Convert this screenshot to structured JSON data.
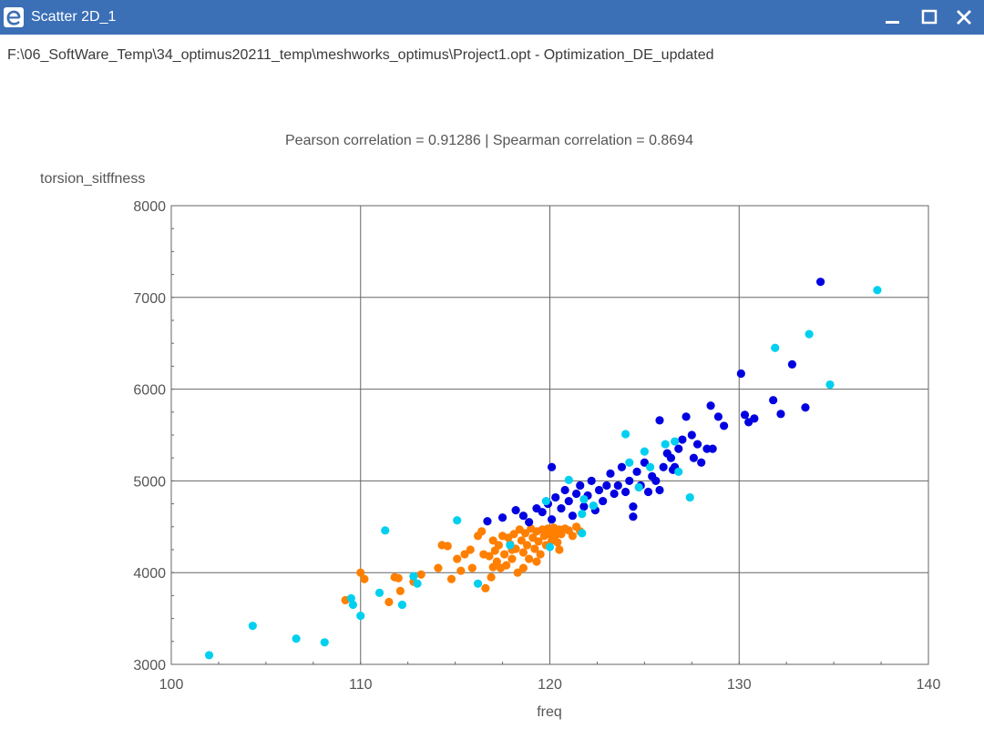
{
  "window": {
    "title": "Scatter 2D_1",
    "path": "F:\\06_SoftWare_Temp\\34_optimus20211_temp\\meshworks_optimus\\Project1.opt - Optimization_DE_updated",
    "title_bar_color": "#3b6fb6",
    "icons": [
      "app-logo-icon",
      "minimize-icon",
      "maximize-icon",
      "close-icon"
    ]
  },
  "chart_data": {
    "type": "scatter",
    "title": "Pearson correlation = 0.91286 | Spearman correlation = 0.8694",
    "xlabel": "freq",
    "ylabel": "torsion_sitffness",
    "xlim": [
      100,
      140
    ],
    "ylim": [
      3000,
      8000
    ],
    "xticks": [
      "100",
      "110",
      "120",
      "130",
      "140"
    ],
    "yticks": [
      "3000",
      "4000",
      "5000",
      "6000",
      "7000",
      "8000"
    ],
    "grid": true,
    "legend": "none",
    "series": [
      {
        "color": "#ff7f00",
        "points": [
          [
            109.2,
            3700
          ],
          [
            110,
            4000
          ],
          [
            110.2,
            3930
          ],
          [
            111.8,
            3950
          ],
          [
            112,
            3940
          ],
          [
            112.1,
            3800
          ],
          [
            111.5,
            3680
          ],
          [
            112.8,
            3900
          ],
          [
            113.2,
            3980
          ],
          [
            114.1,
            4050
          ],
          [
            114.3,
            4300
          ],
          [
            114.6,
            4290
          ],
          [
            114.8,
            3930
          ],
          [
            115.1,
            4150
          ],
          [
            115.3,
            4020
          ],
          [
            115.5,
            4200
          ],
          [
            115.8,
            4250
          ],
          [
            115.9,
            4050
          ],
          [
            116.2,
            4400
          ],
          [
            116.4,
            4450
          ],
          [
            116.6,
            3830
          ],
          [
            116.8,
            4180
          ],
          [
            116.9,
            3950
          ],
          [
            117,
            4350
          ],
          [
            117.1,
            4240
          ],
          [
            117.2,
            4120
          ],
          [
            117.3,
            4300
          ],
          [
            117.4,
            4050
          ],
          [
            117.5,
            4400
          ],
          [
            117.6,
            4200
          ],
          [
            117.7,
            4080
          ],
          [
            117.8,
            4380
          ],
          [
            117.9,
            4310
          ],
          [
            118,
            4150
          ],
          [
            118.1,
            4420
          ],
          [
            118.2,
            4260
          ],
          [
            118.3,
            4000
          ],
          [
            118.4,
            4470
          ],
          [
            118.5,
            4350
          ],
          [
            118.6,
            4220
          ],
          [
            118.7,
            4430
          ],
          [
            118.8,
            4300
          ],
          [
            118.9,
            4150
          ],
          [
            119,
            4480
          ],
          [
            119.1,
            4380
          ],
          [
            119.2,
            4260
          ],
          [
            119.3,
            4450
          ],
          [
            119.4,
            4340
          ],
          [
            119.5,
            4200
          ],
          [
            119.6,
            4470
          ],
          [
            119.7,
            4400
          ],
          [
            119.8,
            4300
          ],
          [
            119.9,
            4480
          ],
          [
            120,
            4420
          ],
          [
            120.1,
            4350
          ],
          [
            120.2,
            4490
          ],
          [
            120.3,
            4410
          ],
          [
            120.4,
            4330
          ],
          [
            120.5,
            4470
          ],
          [
            120.6,
            4420
          ],
          [
            120.8,
            4480
          ],
          [
            121,
            4460
          ],
          [
            121.2,
            4400
          ],
          [
            121.4,
            4500
          ],
          [
            121.6,
            4450
          ],
          [
            116.5,
            4200
          ],
          [
            117,
            4060
          ],
          [
            118,
            4250
          ],
          [
            118.6,
            4050
          ],
          [
            119.3,
            4120
          ],
          [
            120.5,
            4250
          ]
        ]
      },
      {
        "color": "#0000e0",
        "points": [
          [
            116.7,
            4560
          ],
          [
            117.5,
            4600
          ],
          [
            118.2,
            4680
          ],
          [
            118.6,
            4620
          ],
          [
            118.9,
            4550
          ],
          [
            119.3,
            4700
          ],
          [
            119.6,
            4660
          ],
          [
            119.9,
            4750
          ],
          [
            120.1,
            4580
          ],
          [
            120.3,
            4820
          ],
          [
            120.1,
            5150
          ],
          [
            120.6,
            4700
          ],
          [
            120.8,
            4900
          ],
          [
            121,
            4780
          ],
          [
            121.2,
            4620
          ],
          [
            121.4,
            4860
          ],
          [
            121.6,
            4950
          ],
          [
            121.8,
            4720
          ],
          [
            122,
            4840
          ],
          [
            122.2,
            5000
          ],
          [
            122.4,
            4680
          ],
          [
            122.6,
            4900
          ],
          [
            122.8,
            4780
          ],
          [
            123,
            4950
          ],
          [
            123.2,
            5080
          ],
          [
            123.4,
            4860
          ],
          [
            123.6,
            4950
          ],
          [
            123.8,
            5150
          ],
          [
            124,
            4880
          ],
          [
            124.2,
            5000
          ],
          [
            124.4,
            4720
          ],
          [
            124.6,
            5100
          ],
          [
            124.8,
            4950
          ],
          [
            125,
            5200
          ],
          [
            125.2,
            4880
          ],
          [
            125.4,
            5050
          ],
          [
            125.6,
            5000
          ],
          [
            125.8,
            4900
          ],
          [
            126,
            5150
          ],
          [
            126.2,
            5300
          ],
          [
            126.4,
            5250
          ],
          [
            126.6,
            5150
          ],
          [
            126.8,
            5350
          ],
          [
            127,
            5450
          ],
          [
            127.2,
            5700
          ],
          [
            127.5,
            5500
          ],
          [
            127.8,
            5400
          ],
          [
            128,
            5200
          ],
          [
            128.3,
            5350
          ],
          [
            128.5,
            5820
          ],
          [
            128.9,
            5700
          ],
          [
            129.2,
            5600
          ],
          [
            128.6,
            5350
          ],
          [
            130.1,
            6170
          ],
          [
            130.3,
            5720
          ],
          [
            130.5,
            5640
          ],
          [
            130.8,
            5680
          ],
          [
            131.8,
            5880
          ],
          [
            132.2,
            5730
          ],
          [
            132.8,
            6270
          ],
          [
            133.5,
            5800
          ],
          [
            134.3,
            7170
          ],
          [
            124.4,
            4610
          ],
          [
            125.8,
            5660
          ],
          [
            126.5,
            5120
          ],
          [
            127.6,
            5250
          ]
        ]
      },
      {
        "color": "#00d0f0",
        "points": [
          [
            102,
            3100
          ],
          [
            104.3,
            3420
          ],
          [
            106.6,
            3280
          ],
          [
            108.1,
            3240
          ],
          [
            109.5,
            3720
          ],
          [
            109.6,
            3650
          ],
          [
            110,
            3530
          ],
          [
            111,
            3780
          ],
          [
            111.3,
            4460
          ],
          [
            112.2,
            3650
          ],
          [
            112.8,
            3960
          ],
          [
            113,
            3880
          ],
          [
            115.1,
            4570
          ],
          [
            116.2,
            3880
          ],
          [
            117.9,
            4300
          ],
          [
            119.8,
            4780
          ],
          [
            120,
            4280
          ],
          [
            121,
            5010
          ],
          [
            121.8,
            4800
          ],
          [
            121.7,
            4640
          ],
          [
            121.7,
            4430
          ],
          [
            122.3,
            4730
          ],
          [
            124,
            5510
          ],
          [
            124.2,
            5200
          ],
          [
            124.7,
            4930
          ],
          [
            125,
            5320
          ],
          [
            125.3,
            5150
          ],
          [
            126.1,
            5400
          ],
          [
            126.6,
            5430
          ],
          [
            126.8,
            5100
          ],
          [
            127.4,
            4820
          ],
          [
            131.9,
            6450
          ],
          [
            133.7,
            6600
          ],
          [
            134.8,
            6050
          ],
          [
            137.3,
            7080
          ]
        ]
      }
    ]
  }
}
